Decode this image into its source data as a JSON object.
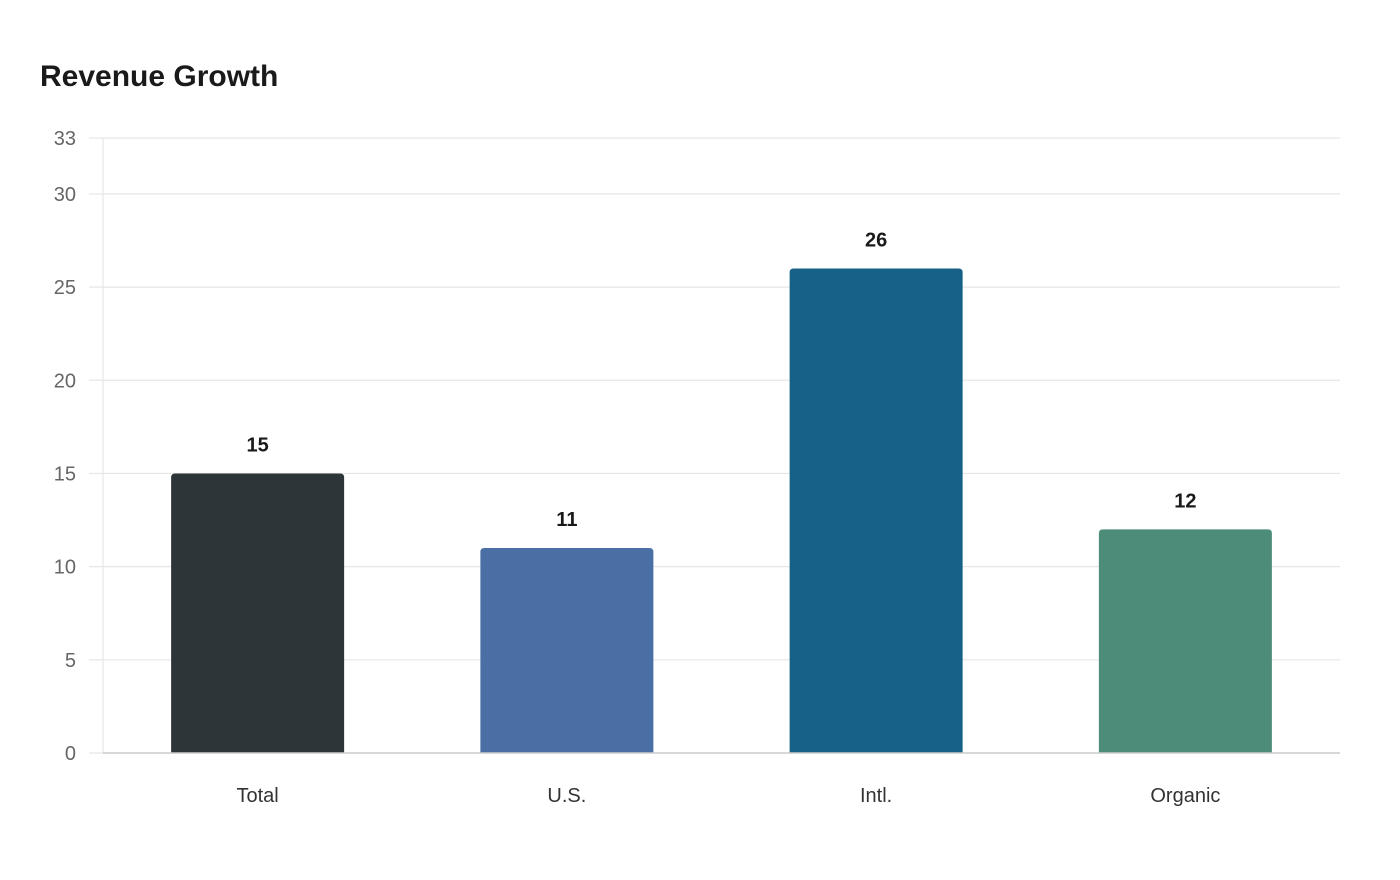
{
  "chart_data": {
    "type": "bar",
    "title": "Revenue Growth",
    "xlabel": "",
    "ylabel": "",
    "categories": [
      "Total",
      "U.S.",
      "Intl.",
      "Organic"
    ],
    "values": [
      15,
      11,
      26,
      12
    ],
    "value_labels": [
      "15",
      "11",
      "26",
      "12"
    ],
    "colors": [
      "#2d3538",
      "#4a6fa5",
      "#176087",
      "#4e8c7a"
    ],
    "ylim": [
      0,
      33
    ],
    "yticks": [
      0,
      5,
      10,
      15,
      20,
      25,
      30,
      33
    ],
    "ytick_labels": [
      "0",
      "5",
      "10",
      "15",
      "20",
      "25",
      "30",
      "33"
    ],
    "grid": true,
    "legend": "none"
  }
}
